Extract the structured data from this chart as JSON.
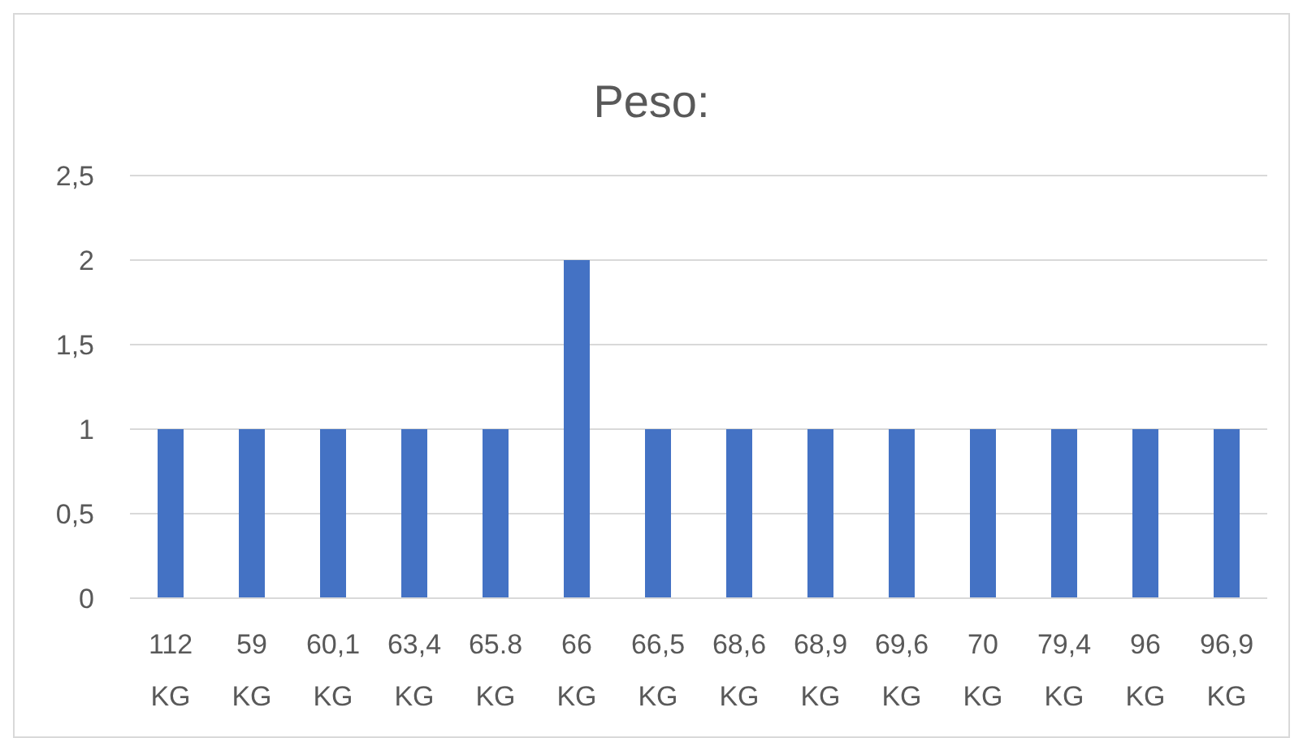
{
  "chart_data": {
    "type": "bar",
    "title": "Peso:",
    "categories": [
      "112 KG",
      "59 KG",
      "60,1 KG",
      "63,4 KG",
      "65.8 KG",
      "66 KG",
      "66,5 KG",
      "68,6 KG",
      "68,9 KG",
      "69,6 KG",
      "70 KG",
      "79,4 KG",
      "96 KG",
      "96,9 KG"
    ],
    "values": [
      1,
      1,
      1,
      1,
      1,
      2,
      1,
      1,
      1,
      1,
      1,
      1,
      1,
      1
    ],
    "color": "#4472c4",
    "ylim": [
      0,
      2.5
    ],
    "yticks": [
      0,
      {
        "value": 0.5,
        "label": "0,5"
      },
      1,
      {
        "value": 1.5,
        "label": "1,5"
      },
      2,
      {
        "value": 2.5,
        "label": "2,5"
      }
    ],
    "grid": "y"
  }
}
